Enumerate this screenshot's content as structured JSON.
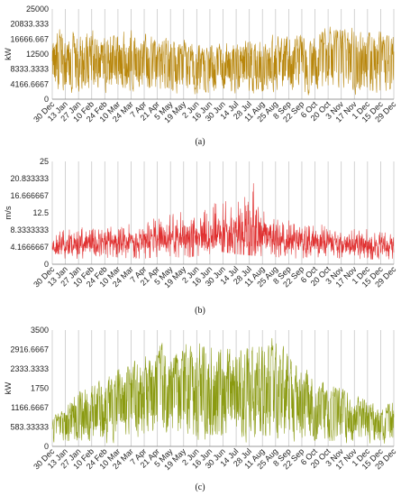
{
  "chart_data": [
    {
      "type": "line",
      "caption": "(a)",
      "ylabel": "kW",
      "ylim": [
        0,
        25000
      ],
      "y_ticks": [
        0,
        4166.6667,
        8333.3333,
        12500,
        16666.667,
        20833.333,
        25000
      ],
      "y_tick_labels": [
        "0",
        "4166.6667",
        "8333.3333",
        "12500",
        "16666.667",
        "20833.333",
        "25000"
      ],
      "x_tick_labels": [
        "30 Dec",
        "13 Jan",
        "27 Jan",
        "10 Feb",
        "24 Feb",
        "10 Mar",
        "24 Mar",
        "7 Apr",
        "21 Apr",
        "5 May",
        "19 May",
        "2 Jun",
        "16 Jun",
        "30 Jun",
        "14 Jul",
        "28 Jul",
        "11 Aug",
        "25 Aug",
        "8 Sep",
        "22 Sep",
        "6 Oct",
        "20 Oct",
        "3 Nov",
        "17 Nov",
        "1 Dec",
        "15 Dec",
        "29 Dec"
      ],
      "grid": "vertical",
      "series": [
        {
          "color": "#B8860B",
          "envelope_upper": [
            20500,
            21000,
            20000,
            20200,
            19800,
            19500,
            20500,
            19700,
            18000,
            18500,
            17500,
            16500,
            16200,
            17000,
            17200,
            18200,
            18300,
            18800,
            19500,
            19600,
            19800,
            20800,
            21000,
            20500,
            20200,
            19500,
            19000
          ],
          "envelope_lower": [
            1000,
            700,
            800,
            900,
            1000,
            600,
            800,
            700,
            900,
            600,
            700,
            500,
            600,
            500,
            800,
            700,
            600,
            700,
            900,
            800,
            700,
            600,
            900,
            800,
            700,
            900,
            800
          ]
        }
      ]
    },
    {
      "type": "line",
      "caption": "(b)",
      "ylabel": "m/s",
      "ylim": [
        0,
        25
      ],
      "y_ticks": [
        0,
        4.1666667,
        8.3333333,
        12.5,
        16.666667,
        20.833333,
        25
      ],
      "y_tick_labels": [
        "0",
        "4.1666667",
        "8.3333333",
        "12.5",
        "16.666667",
        "20.833333",
        "25"
      ],
      "x_tick_labels": [
        "30 Dec",
        "13 Jan",
        "27 Jan",
        "10 Feb",
        "24 Feb",
        "10 Mar",
        "24 Mar",
        "7 Apr",
        "21 Apr",
        "5 May",
        "19 May",
        "2 Jun",
        "16 Jun",
        "30 Jun",
        "14 Jul",
        "28 Jul",
        "11 Aug",
        "25 Aug",
        "8 Sep",
        "22 Sep",
        "6 Oct",
        "20 Oct",
        "3 Nov",
        "17 Nov",
        "1 Dec",
        "15 Dec",
        "29 Dec"
      ],
      "grid": "vertical",
      "series": [
        {
          "color": "#E03030",
          "mean": [
            4.5,
            4.8,
            5.0,
            5.0,
            5.2,
            5.2,
            5.6,
            5.8,
            6.0,
            6.0,
            6.2,
            6.6,
            7.0,
            7.5,
            7.2,
            7.0,
            6.6,
            6.3,
            6.0,
            5.6,
            5.3,
            5.0,
            5.0,
            4.8,
            4.6,
            4.4,
            4.3
          ],
          "envelope_upper": [
            7.5,
            8.5,
            9.0,
            9.0,
            9.5,
            10.0,
            10.0,
            11.0,
            11.5,
            12.0,
            13.0,
            14.0,
            15.5,
            16.5,
            16.0,
            23.0,
            13.0,
            12.5,
            12.0,
            10.0,
            10.0,
            9.5,
            8.5,
            8.5,
            8.5,
            8.0,
            7.0
          ],
          "envelope_lower": [
            1.5,
            1.2,
            1.4,
            1.5,
            1.3,
            1.6,
            1.5,
            1.4,
            1.8,
            2.0,
            1.5,
            2.0,
            2.5,
            3.0,
            2.5,
            2.2,
            2.0,
            1.8,
            1.5,
            1.4,
            1.2,
            1.3,
            1.5,
            1.2,
            1.3,
            1.0,
            1.4
          ]
        }
      ]
    },
    {
      "type": "line",
      "caption": "(c)",
      "ylabel": "kW",
      "ylim": [
        0,
        3500
      ],
      "y_ticks": [
        0,
        583.33333,
        1166.6667,
        1750,
        2333.3333,
        2916.6667,
        3500
      ],
      "y_tick_labels": [
        "0",
        "583.33333",
        "1166.6667",
        "1750",
        "2333.3333",
        "2916.6667",
        "3500"
      ],
      "x_tick_labels": [
        "30 Dec",
        "13 Jan",
        "27 Jan",
        "10 Feb",
        "24 Feb",
        "10 Mar",
        "24 Mar",
        "7 Apr",
        "21 Apr",
        "5 May",
        "19 May",
        "2 Jun",
        "16 Jun",
        "30 Jun",
        "14 Jul",
        "28 Jul",
        "11 Aug",
        "25 Aug",
        "8 Sep",
        "22 Sep",
        "6 Oct",
        "20 Oct",
        "3 Nov",
        "17 Nov",
        "1 Dec",
        "15 Dec",
        "29 Dec"
      ],
      "grid": "vertical",
      "series": [
        {
          "color": "#8A9A10",
          "envelope_upper": [
            900,
            1200,
            2000,
            1900,
            2300,
            2500,
            2700,
            3000,
            3300,
            3350,
            3400,
            3400,
            3400,
            3400,
            3400,
            3400,
            3400,
            3400,
            3000,
            2700,
            2300,
            2000,
            1900,
            1800,
            1500,
            1200,
            1500
          ],
          "envelope_lower": [
            0,
            0,
            0,
            0,
            0,
            0,
            0,
            0,
            0,
            50,
            0,
            100,
            0,
            0,
            0,
            0,
            0,
            0,
            0,
            0,
            0,
            0,
            0,
            0,
            0,
            0,
            0
          ]
        }
      ]
    }
  ]
}
